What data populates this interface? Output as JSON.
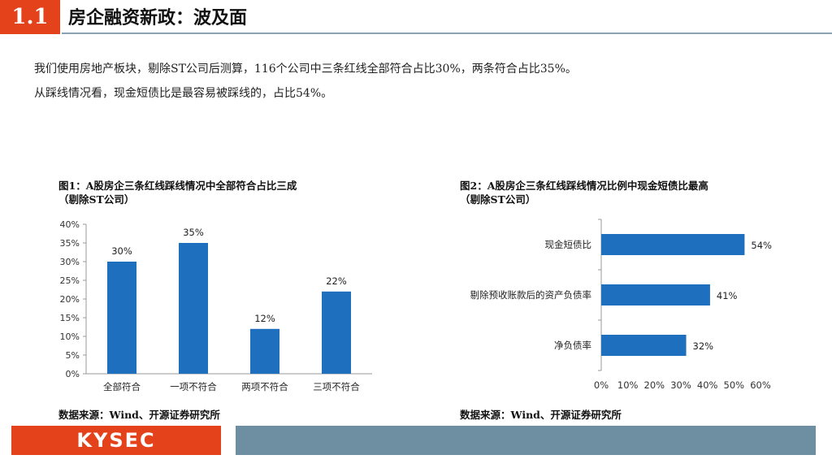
{
  "header": {
    "section_number": "1.1",
    "title": "房企融资新政：波及面"
  },
  "body": {
    "paragraphs": [
      "我们使用房地产板块，剔除ST公司后测算，116个公司中三条红线全部符合占比30%，两条符合占比35%。",
      "从踩线情况看，现金短债比是最容易被踩线的，占比54%。"
    ]
  },
  "figure1": {
    "caption_line1": "图1：A股房企三条红线踩线情况中全部符合占比三成",
    "caption_line2": "（剔除ST公司）",
    "source": "数据来源：Wind、开源证券研究所"
  },
  "figure2": {
    "caption_line1": "图2：A股房企三条红线踩线情况比例中现金短债比最高",
    "caption_line2": "（剔除ST公司）",
    "source": "数据来源：Wind、开源证券研究所"
  },
  "footer": {
    "logo_text": "KYSEC",
    "logo_color": "#e3421b",
    "bar_color": "#6e8fa1"
  },
  "colors": {
    "accent": "#e3421b",
    "bar": "#1f6fbf"
  },
  "chart_data": [
    {
      "type": "bar",
      "orientation": "vertical",
      "categories": [
        "全部符合",
        "一项不符合",
        "两项不符合",
        "三项不符合"
      ],
      "values": [
        30,
        35,
        12,
        22
      ],
      "data_labels": [
        "30%",
        "35%",
        "12%",
        "22%"
      ],
      "ylim": [
        0,
        40
      ],
      "yticks": [
        "0%",
        "5%",
        "10%",
        "15%",
        "20%",
        "25%",
        "30%",
        "35%",
        "40%"
      ],
      "grid": false,
      "legend": "none"
    },
    {
      "type": "bar",
      "orientation": "horizontal",
      "categories": [
        "现金短债比",
        "剔除预收账款后的资产负债率",
        "净负债率"
      ],
      "values": [
        54,
        41,
        32
      ],
      "data_labels": [
        "54%",
        "41%",
        "32%"
      ],
      "xlim": [
        0,
        60
      ],
      "xticks": [
        "0%",
        "10%",
        "20%",
        "30%",
        "40%",
        "50%",
        "60%"
      ],
      "grid": false,
      "legend": "none"
    }
  ]
}
